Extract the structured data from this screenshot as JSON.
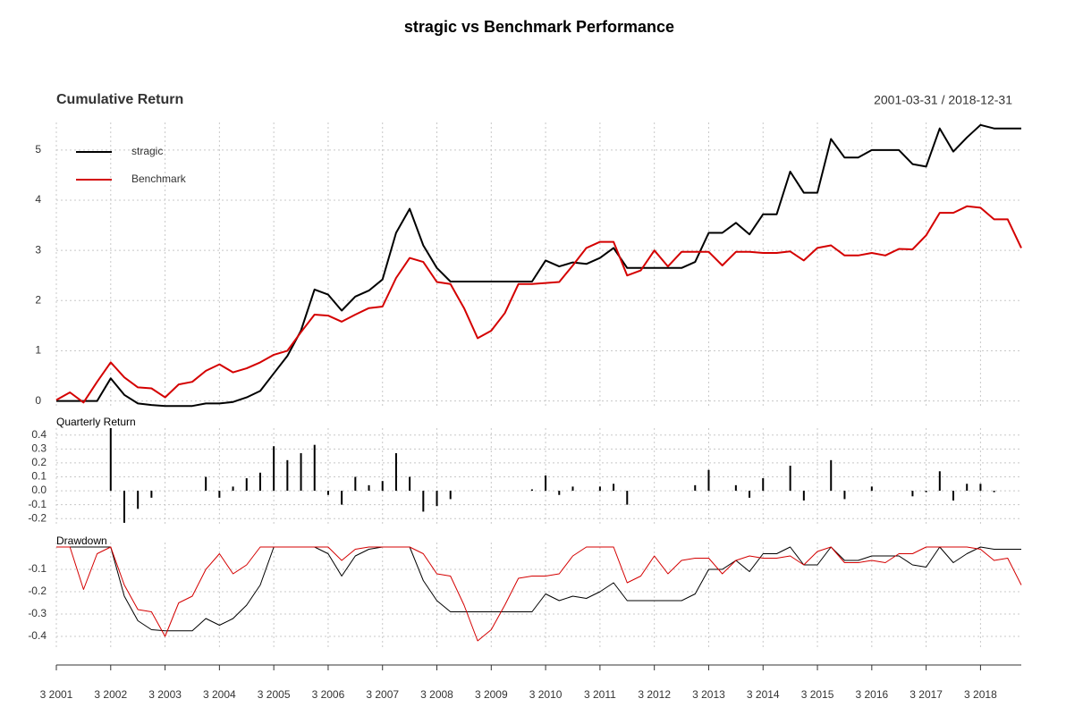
{
  "title": "stragic vs Benchmark Performance",
  "period": "2001-03-31 / 2018-12-31",
  "chart_data": [
    {
      "type": "line",
      "title": "Cumulative Return",
      "legend": "top-left",
      "grid": true,
      "ylim": [
        -0.15,
        5.55
      ],
      "yticks": [
        0,
        1,
        2,
        3,
        4,
        5
      ],
      "series": [
        {
          "name": "stragic",
          "color": "#000000",
          "values": [
            0,
            0,
            0,
            0,
            0.45,
            0.12,
            -0.05,
            -0.08,
            -0.1,
            -0.1,
            -0.1,
            -0.05,
            -0.05,
            -0.02,
            0.07,
            0.2,
            0.55,
            0.9,
            1.4,
            2.22,
            2.12,
            1.8,
            2.08,
            2.2,
            2.42,
            3.35,
            3.83,
            3.1,
            2.65,
            2.38,
            2.38,
            2.38,
            2.38,
            2.38,
            2.38,
            2.38,
            2.8,
            2.68,
            2.76,
            2.73,
            2.85,
            3.05,
            2.65,
            2.65,
            2.65,
            2.65,
            2.65,
            2.77,
            3.35,
            3.35,
            3.55,
            3.32,
            3.72,
            3.72,
            4.57,
            4.15,
            4.15,
            5.22,
            4.85,
            4.85,
            5.0,
            5.0,
            5.0,
            4.72,
            4.67,
            5.43,
            4.97,
            5.25,
            5.5,
            5.43,
            5.43,
            5.43
          ]
        },
        {
          "name": "Benchmark",
          "color": "#d40000",
          "values": [
            0.02,
            0.17,
            -0.03,
            0.38,
            0.77,
            0.47,
            0.27,
            0.25,
            0.07,
            0.33,
            0.38,
            0.6,
            0.73,
            0.57,
            0.65,
            0.77,
            0.92,
            1.0,
            1.37,
            1.72,
            1.7,
            1.58,
            1.72,
            1.85,
            1.88,
            2.45,
            2.85,
            2.77,
            2.37,
            2.33,
            1.85,
            1.25,
            1.4,
            1.75,
            2.33,
            2.33,
            2.35,
            2.37,
            2.7,
            3.05,
            3.17,
            3.17,
            2.5,
            2.6,
            3.0,
            2.68,
            2.97,
            2.97,
            2.97,
            2.7,
            2.97,
            2.97,
            2.95,
            2.95,
            2.98,
            2.8,
            3.05,
            3.1,
            2.9,
            2.9,
            2.95,
            2.9,
            3.03,
            3.02,
            3.3,
            3.75,
            3.75,
            3.88,
            3.85,
            3.62,
            3.62,
            3.05
          ]
        }
      ]
    },
    {
      "type": "bar",
      "title": "Quarterly Return",
      "grid": true,
      "ylim": [
        -0.25,
        0.45
      ],
      "yticks": [
        -0.2,
        -0.1,
        {
          "value": 0,
          "label": "0.0"
        },
        0.1,
        0.2,
        0.3,
        0.4
      ],
      "series": [
        {
          "name": "stragic",
          "color": "#000000",
          "values": [
            0,
            0,
            0,
            0,
            0.45,
            -0.23,
            -0.13,
            -0.05,
            0,
            0,
            0,
            0.1,
            -0.05,
            0.03,
            0.09,
            0.13,
            0.32,
            0.22,
            0.27,
            0.33,
            -0.03,
            -0.1,
            0.1,
            0.04,
            0.07,
            0.27,
            0.1,
            -0.15,
            -0.11,
            -0.06,
            0,
            0,
            0,
            0,
            0,
            0.01,
            0.11,
            -0.03,
            0.03,
            0,
            0.03,
            0.05,
            -0.1,
            0,
            0,
            0,
            0,
            0.04,
            0.15,
            0,
            0.04,
            -0.05,
            0.09,
            0,
            0.18,
            -0.07,
            0,
            0.22,
            -0.06,
            0,
            0.03,
            0,
            0,
            -0.04,
            -0.01,
            0.14,
            -0.07,
            0.05,
            0.05,
            -0.01,
            0,
            0
          ]
        }
      ]
    },
    {
      "type": "line",
      "title": "Drawdown",
      "grid": true,
      "ylim": [
        -0.45,
        0.02
      ],
      "yticks": [
        -0.4,
        -0.3,
        -0.2,
        -0.1
      ],
      "categories": [
        "3 2001",
        null,
        null,
        null,
        "3 2002",
        null,
        null,
        null,
        "3 2003",
        null,
        null,
        null,
        "3 2004",
        null,
        null,
        null,
        "3 2005",
        null,
        null,
        null,
        "3 2006",
        null,
        null,
        null,
        "3 2007",
        null,
        null,
        null,
        "3 2008",
        null,
        null,
        null,
        "3 2009",
        null,
        null,
        null,
        "3 2010",
        null,
        null,
        null,
        "3 2011",
        null,
        null,
        null,
        "3 2012",
        null,
        null,
        null,
        "3 2013",
        null,
        null,
        null,
        "3 2014",
        null,
        null,
        null,
        "3 2015",
        null,
        null,
        null,
        "3 2016",
        null,
        null,
        null,
        "3 2017",
        null,
        null,
        null,
        "3 2018",
        null,
        null,
        null
      ],
      "series": [
        {
          "name": "stragic",
          "color": "#000000",
          "values": [
            0,
            0,
            0,
            0,
            0,
            -0.22,
            -0.33,
            -0.37,
            -0.375,
            -0.375,
            -0.375,
            -0.32,
            -0.35,
            -0.32,
            -0.26,
            -0.17,
            0,
            0,
            0,
            0,
            -0.03,
            -0.13,
            -0.04,
            -0.01,
            0,
            0,
            0,
            -0.15,
            -0.24,
            -0.29,
            -0.29,
            -0.29,
            -0.29,
            -0.29,
            -0.29,
            -0.29,
            -0.21,
            -0.24,
            -0.22,
            -0.23,
            -0.2,
            -0.16,
            -0.24,
            -0.24,
            -0.24,
            -0.24,
            -0.24,
            -0.21,
            -0.1,
            -0.1,
            -0.06,
            -0.11,
            -0.03,
            -0.03,
            0,
            -0.08,
            -0.08,
            0,
            -0.06,
            -0.06,
            -0.04,
            -0.04,
            -0.04,
            -0.08,
            -0.09,
            0,
            -0.07,
            -0.03,
            0,
            -0.01,
            -0.01,
            -0.01
          ]
        },
        {
          "name": "Benchmark",
          "color": "#d40000",
          "values": [
            0,
            0,
            -0.19,
            -0.03,
            0,
            -0.17,
            -0.28,
            -0.29,
            -0.4,
            -0.25,
            -0.22,
            -0.1,
            -0.03,
            -0.12,
            -0.08,
            0,
            0,
            0,
            0,
            0,
            0,
            -0.06,
            -0.01,
            0,
            0,
            0,
            0,
            -0.03,
            -0.12,
            -0.13,
            -0.26,
            -0.42,
            -0.37,
            -0.26,
            -0.14,
            -0.13,
            -0.13,
            -0.12,
            -0.04,
            0,
            0,
            0,
            -0.16,
            -0.13,
            -0.04,
            -0.12,
            -0.06,
            -0.05,
            -0.05,
            -0.12,
            -0.06,
            -0.04,
            -0.05,
            -0.05,
            -0.04,
            -0.08,
            -0.02,
            0,
            -0.07,
            -0.07,
            -0.06,
            -0.07,
            -0.03,
            -0.03,
            0,
            0,
            0,
            0,
            -0.01,
            -0.06,
            -0.05,
            -0.17
          ]
        }
      ]
    }
  ]
}
